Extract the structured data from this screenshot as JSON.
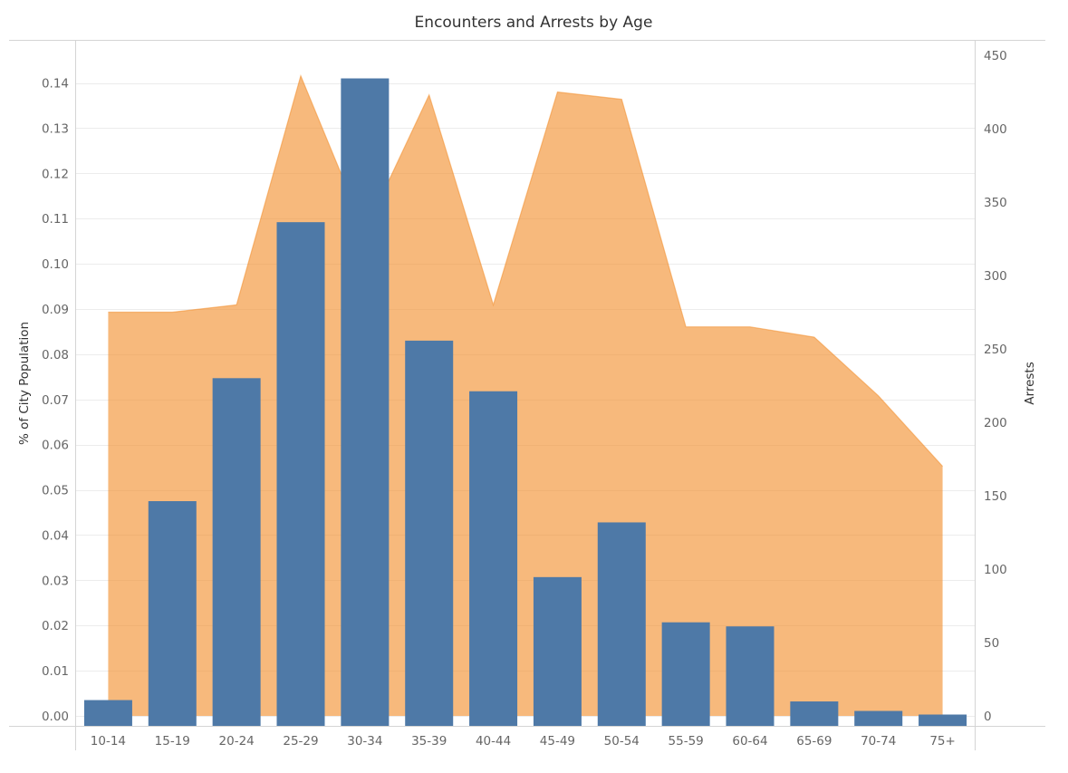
{
  "chart_data": {
    "type": "bar",
    "title": "Encounters and Arrests by Age",
    "categories": [
      "10-14",
      "15-19",
      "20-24",
      "25-29",
      "30-34",
      "35-39",
      "40-44",
      "45-49",
      "50-54",
      "55-59",
      "60-64",
      "65-69",
      "70-74",
      "75+"
    ],
    "series": [
      {
        "axis": "left",
        "type": "bar",
        "color": "#4e79a7",
        "values": [
          0.0035,
          0.0475,
          0.0747,
          0.1092,
          0.141,
          0.083,
          0.0718,
          0.0307,
          0.0428,
          0.0207,
          0.0198,
          0.0032,
          0.0011,
          0.0003
        ]
      },
      {
        "name": "Arrests",
        "axis": "right",
        "type": "area",
        "color": "#f28e2b",
        "values": [
          275,
          275,
          280,
          436,
          330,
          423,
          280,
          425,
          420,
          265,
          265,
          258,
          218,
          170
        ]
      }
    ],
    "y_left": {
      "label": "% of City Population",
      "range": [
        0,
        0.14
      ],
      "ticks": [
        "0.00",
        "0.01",
        "0.02",
        "0.03",
        "0.04",
        "0.05",
        "0.06",
        "0.07",
        "0.08",
        "0.09",
        "0.10",
        "0.11",
        "0.12",
        "0.13",
        "0.14"
      ]
    },
    "y_right": {
      "label": "Arrests",
      "range": [
        0,
        450
      ],
      "ticks": [
        "0",
        "50",
        "100",
        "150",
        "200",
        "250",
        "300",
        "350",
        "400",
        "450"
      ]
    },
    "grid": true
  }
}
